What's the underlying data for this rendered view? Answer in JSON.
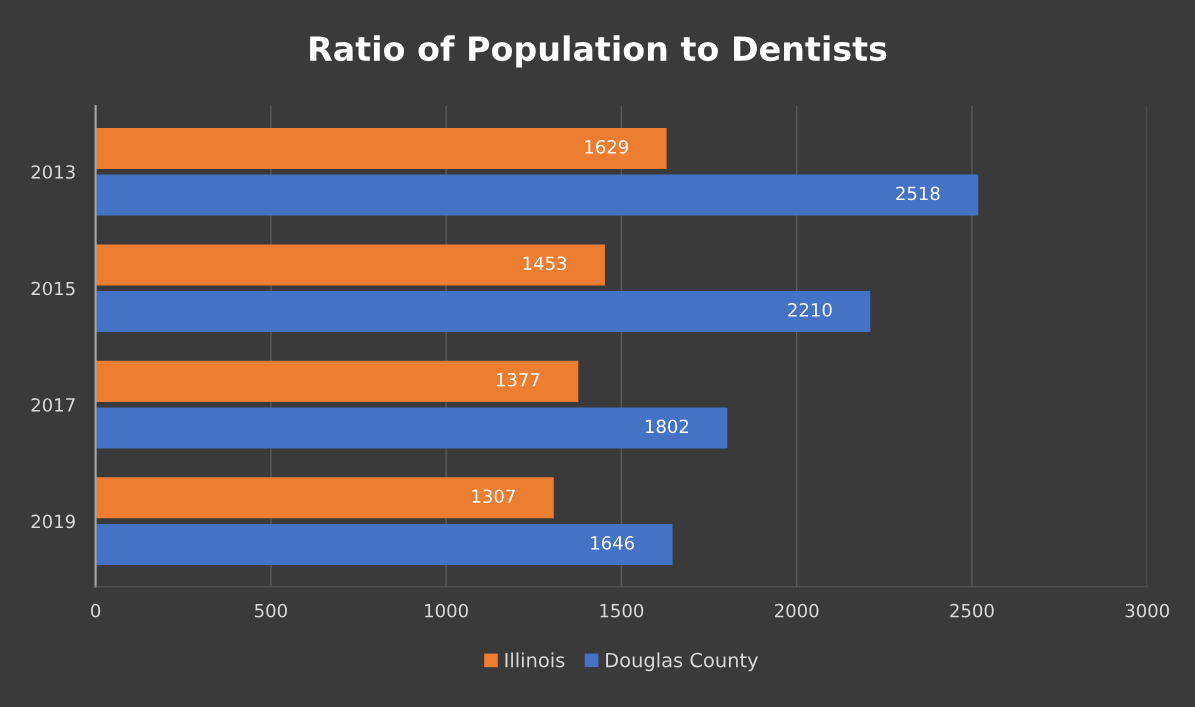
{
  "chart_data": {
    "type": "bar",
    "orientation": "horizontal",
    "title": "Ratio of Population to Dentists",
    "categories": [
      "2013",
      "2015",
      "2017",
      "2019"
    ],
    "series": [
      {
        "name": "Illinois",
        "color": "#ed7d31",
        "values": [
          1629,
          1453,
          1377,
          1307
        ]
      },
      {
        "name": "Douglas County",
        "color": "#4472c4",
        "values": [
          2518,
          2210,
          1802,
          1646
        ]
      }
    ],
    "xlim": [
      0,
      3000
    ],
    "xticks": [
      0,
      500,
      1000,
      1500,
      2000,
      2500,
      3000
    ],
    "grid": "x",
    "legend": "bottom",
    "data_labels": true
  }
}
